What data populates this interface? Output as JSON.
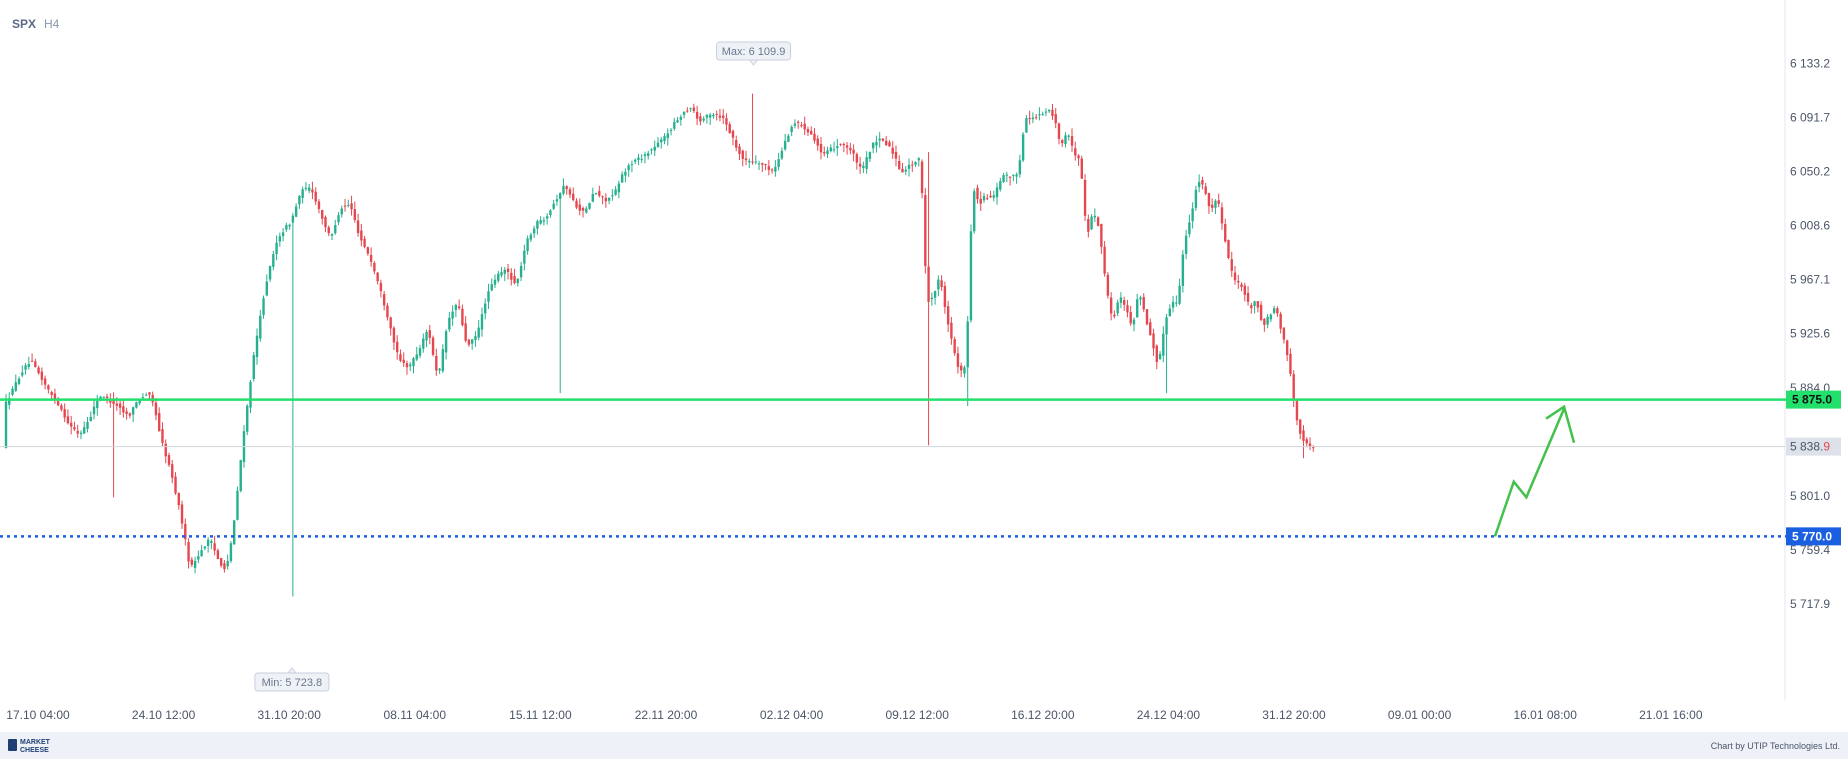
{
  "header": {
    "symbol": "SPX",
    "timeframe": "H4"
  },
  "chart_data": {
    "type": "candlestick",
    "y_ticks": [
      "6 133.2",
      "6 091.7",
      "6 050.2",
      "6 008.6",
      "5 967.1",
      "5 925.6",
      "5 884.0",
      "5 801.0",
      "5 759.4",
      "5 717.9"
    ],
    "y_tick_values": [
      6133.2,
      6091.7,
      6050.2,
      6008.6,
      5967.1,
      5925.6,
      5884.0,
      5801.0,
      5759.4,
      5717.9
    ],
    "x_ticks": [
      "17.10 04:00",
      "24.10 12:00",
      "31.10 20:00",
      "08.11 04:00",
      "15.11 12:00",
      "22.11 20:00",
      "02.12 04:00",
      "09.12 12:00",
      "16.12 20:00",
      "24.12 04:00",
      "31.12 20:00",
      "09.01 00:00",
      "16.01 08:00",
      "21.01 16:00"
    ],
    "ylim": [
      5700,
      6145
    ],
    "max_label": "Max: 6 109.9",
    "max_value": 6109.9,
    "min_label": "Min: 5 723.8",
    "min_value": 5723.8,
    "levels": [
      {
        "label": "5 875.0",
        "value": 5875.0,
        "color": "#22e06b",
        "style": "solid"
      },
      {
        "label": "5 770.0",
        "value": 5770.0,
        "color": "#1a5fe0",
        "style": "dotted"
      }
    ],
    "current": {
      "label_main": "5 838.",
      "label_last": "9",
      "value": 5838.9
    },
    "forecast_arrow": {
      "color": "#43c24b",
      "path": [
        [
          14.6,
          5770
        ],
        [
          14.75,
          5812
        ],
        [
          14.85,
          5800
        ],
        [
          15.15,
          5868
        ]
      ]
    },
    "colors": {
      "up": "#26b08f",
      "down": "#e5474f"
    },
    "anchors": [
      [
        0,
        5870
      ],
      [
        2,
        5880
      ],
      [
        5,
        5895
      ],
      [
        8,
        5905
      ],
      [
        11,
        5893
      ],
      [
        14,
        5880
      ],
      [
        17,
        5870
      ],
      [
        20,
        5855
      ],
      [
        23,
        5848
      ],
      [
        26,
        5860
      ],
      [
        29,
        5878
      ],
      [
        32,
        5875
      ],
      [
        35,
        5870
      ],
      [
        38,
        5862
      ],
      [
        41,
        5875
      ],
      [
        44,
        5880
      ],
      [
        46,
        5870
      ],
      [
        48,
        5845
      ],
      [
        51,
        5820
      ],
      [
        54,
        5788
      ],
      [
        57,
        5745
      ],
      [
        60,
        5758
      ],
      [
        63,
        5768
      ],
      [
        66,
        5750
      ],
      [
        68,
        5745
      ],
      [
        70,
        5770
      ],
      [
        73,
        5840
      ],
      [
        76,
        5900
      ],
      [
        80,
        5962
      ],
      [
        84,
        6000
      ],
      [
        88,
        6012
      ],
      [
        91,
        6035
      ],
      [
        94,
        6038
      ],
      [
        97,
        6018
      ],
      [
        100,
        5998
      ],
      [
        103,
        6022
      ],
      [
        106,
        6025
      ],
      [
        109,
        6000
      ],
      [
        112,
        5985
      ],
      [
        115,
        5962
      ],
      [
        118,
        5935
      ],
      [
        121,
        5905
      ],
      [
        124,
        5900
      ],
      [
        127,
        5912
      ],
      [
        130,
        5930
      ],
      [
        133,
        5890
      ],
      [
        136,
        5935
      ],
      [
        139,
        5950
      ],
      [
        142,
        5915
      ],
      [
        145,
        5925
      ],
      [
        148,
        5955
      ],
      [
        151,
        5970
      ],
      [
        154,
        5975
      ],
      [
        157,
        5962
      ],
      [
        160,
        5995
      ],
      [
        163,
        6010
      ],
      [
        166,
        6015
      ],
      [
        169,
        6028
      ],
      [
        172,
        6040
      ],
      [
        175,
        6025
      ],
      [
        178,
        6018
      ],
      [
        181,
        6035
      ],
      [
        184,
        6028
      ],
      [
        187,
        6032
      ],
      [
        190,
        6050
      ],
      [
        193,
        6058
      ],
      [
        196,
        6062
      ],
      [
        199,
        6068
      ],
      [
        202,
        6075
      ],
      [
        205,
        6085
      ],
      [
        208,
        6095
      ],
      [
        211,
        6100
      ],
      [
        213,
        6088
      ],
      [
        215,
        6092
      ],
      [
        218,
        6095
      ],
      [
        221,
        6090
      ],
      [
        224,
        6072
      ],
      [
        227,
        6058
      ],
      [
        230,
        6058
      ],
      [
        233,
        6055
      ],
      [
        236,
        6050
      ],
      [
        239,
        6070
      ],
      [
        242,
        6088
      ],
      [
        245,
        6085
      ],
      [
        248,
        6078
      ],
      [
        251,
        6062
      ],
      [
        254,
        6068
      ],
      [
        257,
        6072
      ],
      [
        260,
        6065
      ],
      [
        263,
        6050
      ],
      [
        266,
        6070
      ],
      [
        269,
        6075
      ],
      [
        272,
        6068
      ],
      [
        275,
        6050
      ],
      [
        278,
        6055
      ],
      [
        281,
        6060
      ],
      [
        283,
        5950
      ],
      [
        285,
        5955
      ],
      [
        287,
        5970
      ],
      [
        289,
        5940
      ],
      [
        291,
        5915
      ],
      [
        293,
        5895
      ],
      [
        295,
        5900
      ],
      [
        297,
        6040
      ],
      [
        299,
        6025
      ],
      [
        301,
        6032
      ],
      [
        303,
        6028
      ],
      [
        305,
        6040
      ],
      [
        307,
        6048
      ],
      [
        309,
        6045
      ],
      [
        311,
        6050
      ],
      [
        313,
        6090
      ],
      [
        316,
        6092
      ],
      [
        319,
        6095
      ],
      [
        320,
        6098
      ],
      [
        322,
        6092
      ],
      [
        324,
        6070
      ],
      [
        326,
        6080
      ],
      [
        328,
        6065
      ],
      [
        330,
        6060
      ],
      [
        332,
        6000
      ],
      [
        334,
        6020
      ],
      [
        336,
        6005
      ],
      [
        338,
        5960
      ],
      [
        340,
        5935
      ],
      [
        342,
        5955
      ],
      [
        344,
        5945
      ],
      [
        346,
        5930
      ],
      [
        348,
        5960
      ],
      [
        350,
        5938
      ],
      [
        352,
        5920
      ],
      [
        354,
        5900
      ],
      [
        356,
        5935
      ],
      [
        358,
        5950
      ],
      [
        360,
        5950
      ],
      [
        362,
        5998
      ],
      [
        364,
        6015
      ],
      [
        366,
        6045
      ],
      [
        368,
        6038
      ],
      [
        370,
        6020
      ],
      [
        372,
        6030
      ],
      [
        374,
        6005
      ],
      [
        376,
        5975
      ],
      [
        378,
        5965
      ],
      [
        380,
        5960
      ],
      [
        382,
        5945
      ],
      [
        384,
        5952
      ],
      [
        386,
        5930
      ],
      [
        388,
        5940
      ],
      [
        390,
        5945
      ],
      [
        392,
        5925
      ],
      [
        394,
        5905
      ],
      [
        396,
        5865
      ],
      [
        398,
        5845
      ],
      [
        400,
        5839
      ]
    ]
  },
  "footer": {
    "logo_line1": "MARKET",
    "logo_line2": "CHEESE",
    "credit": "Chart by UTIP Technologies Ltd."
  }
}
